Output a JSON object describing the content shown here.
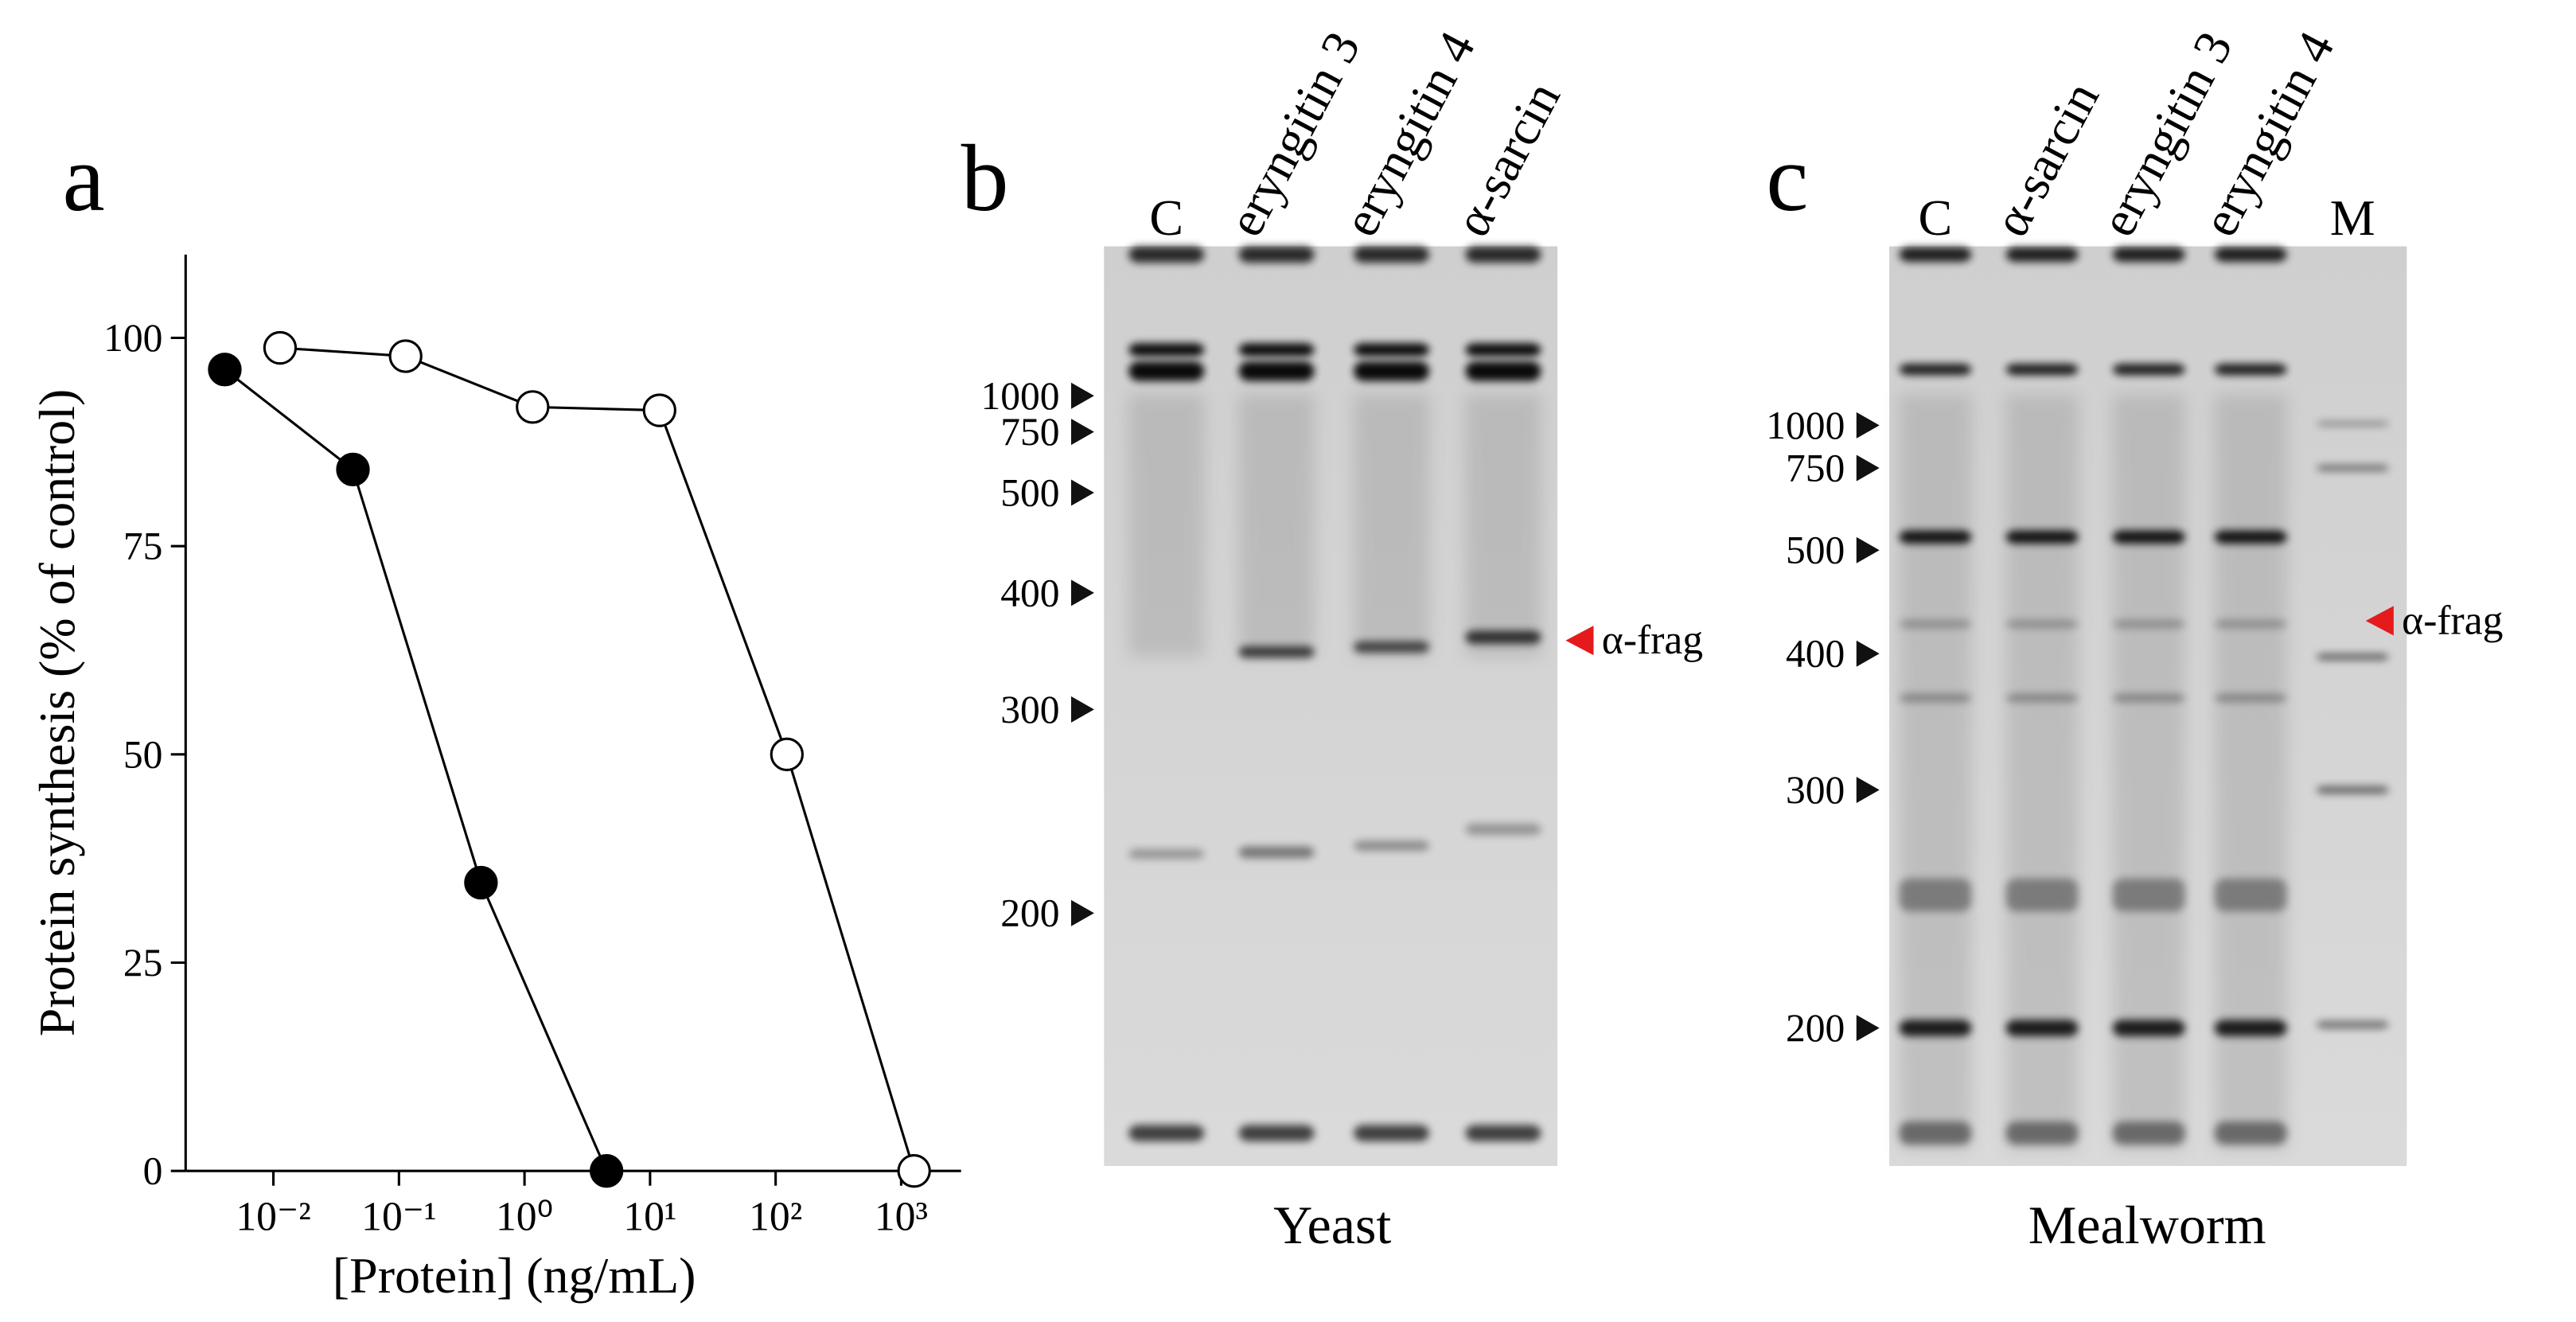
{
  "chart_data": {
    "type": "line",
    "panel_label": "a",
    "ylabel": "Protein synthesis (% of control)",
    "xlabel": "[Protein] (ng/mL)",
    "xscale": "log",
    "xlim": [
      0.002,
      3000
    ],
    "ylim": [
      0,
      110
    ],
    "xticks": [
      {
        "value": 0.01,
        "label": "10⁻²"
      },
      {
        "value": 0.1,
        "label": "10⁻¹"
      },
      {
        "value": 1,
        "label": "10⁰"
      },
      {
        "value": 10,
        "label": "10¹"
      },
      {
        "value": 100,
        "label": "10²"
      },
      {
        "value": 1000,
        "label": "10³"
      }
    ],
    "yticks": [
      0,
      25,
      50,
      75,
      100
    ],
    "series": [
      {
        "color": "#000000",
        "marker_fill": "#000000",
        "x": [
          0.0041,
          0.043,
          0.45,
          4.5
        ],
        "values": [
          96.2,
          84.2,
          34.6,
          0
        ]
      },
      {
        "color": "#000000",
        "marker_fill": "#ffffff",
        "x": [
          0.0113,
          0.113,
          1.16,
          11.9,
          123,
          1268
        ],
        "values": [
          98.8,
          97.8,
          91.7,
          91.3,
          50,
          0
        ]
      }
    ]
  },
  "gels": [
    {
      "panel_label": "b",
      "lanes": [
        "C",
        "eryngitin 3",
        "eryngitin 4",
        "α-sarcin"
      ],
      "markers": [
        "1000",
        "750",
        "500",
        "400",
        "300",
        "200"
      ],
      "annotation": "α-frag",
      "caption": "Yeast"
    },
    {
      "panel_label": "c",
      "lanes": [
        "C",
        "α-sarcin",
        "eryngitin 3",
        "eryngitin 4",
        "M"
      ],
      "markers": [
        "1000",
        "750",
        "500",
        "400",
        "300",
        "200"
      ],
      "annotation": "α-frag",
      "caption": "Mealworm"
    }
  ]
}
